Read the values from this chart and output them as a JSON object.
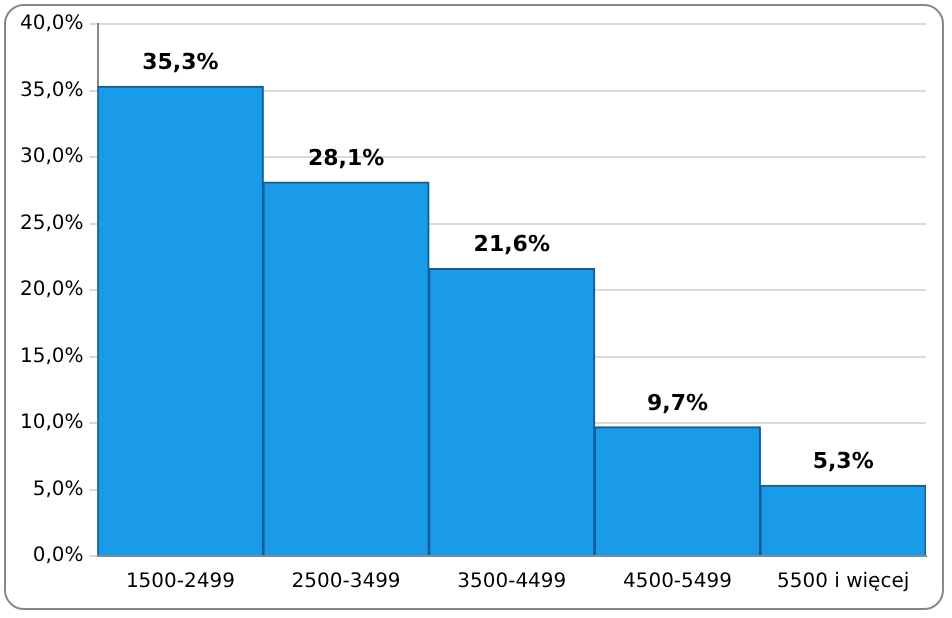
{
  "chart_data": {
    "type": "bar",
    "categories": [
      "1500-2499",
      "2500-3499",
      "3500-4499",
      "4500-5499",
      "5500 i więcej"
    ],
    "values": [
      35.3,
      28.1,
      21.6,
      9.7,
      5.3
    ],
    "value_labels": [
      "35,3%",
      "28,1%",
      "21,6%",
      "9,7%",
      "5,3%"
    ],
    "color": "#1a9be8",
    "ylim": [
      0,
      40
    ],
    "yticks": [
      {
        "value": 0,
        "label": "0,0%"
      },
      {
        "value": 5,
        "label": "5,0%"
      },
      {
        "value": 10,
        "label": "10,0%"
      },
      {
        "value": 15,
        "label": "15,0%"
      },
      {
        "value": 20,
        "label": "20,0%"
      },
      {
        "value": 25,
        "label": "25,0%"
      },
      {
        "value": 30,
        "label": "30,0%"
      },
      {
        "value": 35,
        "label": "35,0%"
      },
      {
        "value": 40,
        "label": "40,0%"
      }
    ],
    "grid": "y",
    "legend": false
  }
}
